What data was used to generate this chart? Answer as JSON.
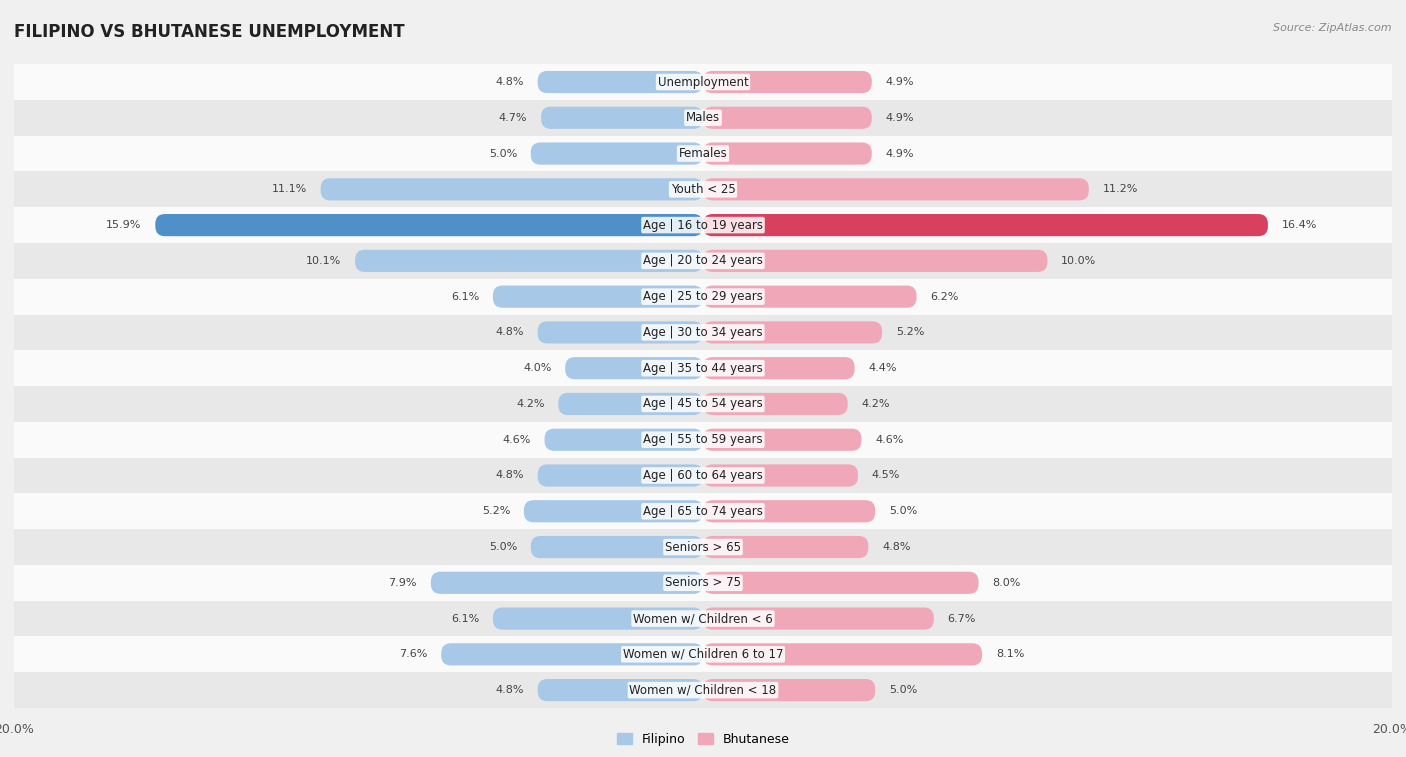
{
  "title": "FILIPINO VS BHUTANESE UNEMPLOYMENT",
  "source": "Source: ZipAtlas.com",
  "categories": [
    "Unemployment",
    "Males",
    "Females",
    "Youth < 25",
    "Age | 16 to 19 years",
    "Age | 20 to 24 years",
    "Age | 25 to 29 years",
    "Age | 30 to 34 years",
    "Age | 35 to 44 years",
    "Age | 45 to 54 years",
    "Age | 55 to 59 years",
    "Age | 60 to 64 years",
    "Age | 65 to 74 years",
    "Seniors > 65",
    "Seniors > 75",
    "Women w/ Children < 6",
    "Women w/ Children 6 to 17",
    "Women w/ Children < 18"
  ],
  "filipino": [
    4.8,
    4.7,
    5.0,
    11.1,
    15.9,
    10.1,
    6.1,
    4.8,
    4.0,
    4.2,
    4.6,
    4.8,
    5.2,
    5.0,
    7.9,
    6.1,
    7.6,
    4.8
  ],
  "bhutanese": [
    4.9,
    4.9,
    4.9,
    11.2,
    16.4,
    10.0,
    6.2,
    5.2,
    4.4,
    4.2,
    4.6,
    4.5,
    5.0,
    4.8,
    8.0,
    6.7,
    8.1,
    5.0
  ],
  "filipino_color": "#a8c8e8",
  "bhutanese_color": "#f0a8b8",
  "highlight_filipino_color": "#5090c8",
  "highlight_bhutanese_color": "#d84060",
  "max_val": 20.0,
  "bar_height": 0.62,
  "bg_color": "#f0f0f0",
  "row_color_light": "#fafafa",
  "row_color_dark": "#e8e8e8",
  "title_fontsize": 12,
  "label_fontsize": 8.5,
  "value_fontsize": 8.0
}
